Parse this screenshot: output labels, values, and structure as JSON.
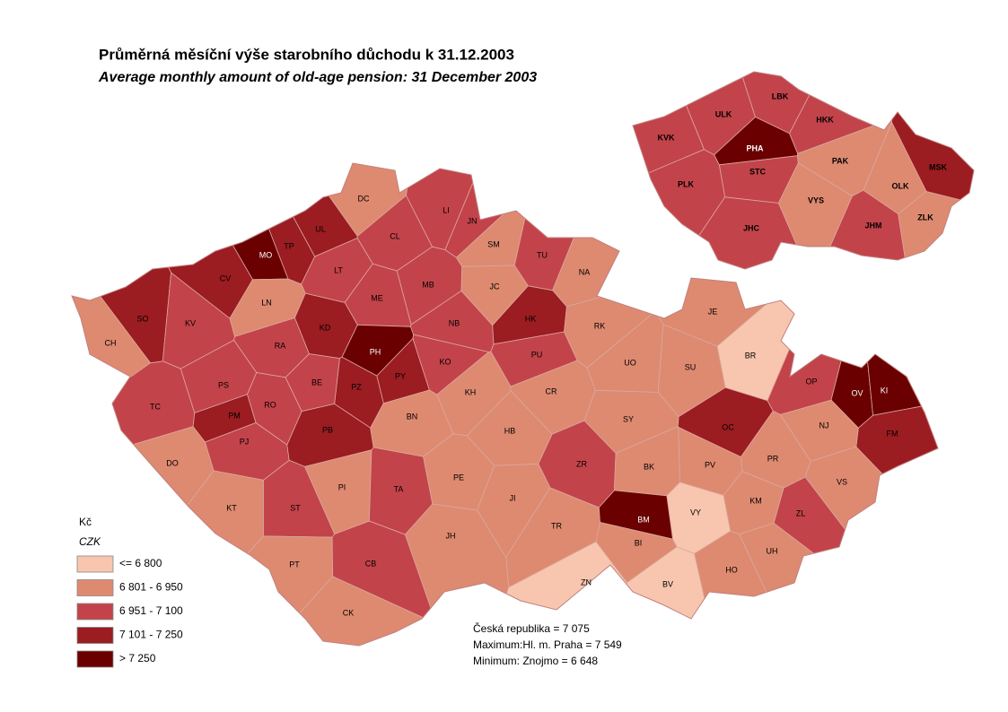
{
  "title": "Průměrná měsíční výše starobního důchodu k 31.12.2003",
  "subtitle": "Average monthly amount of old-age pension: 31 December 2003",
  "legend": {
    "title": "Kč",
    "subtitle": "CZK",
    "classes": [
      {
        "label": "<= 6 800",
        "color": "#f8c6ae"
      },
      {
        "label": "6 801 - 6 950",
        "color": "#de8a70"
      },
      {
        "label": "6 951 - 7 100",
        "color": "#c3434a"
      },
      {
        "label": "7 101 - 7 250",
        "color": "#9b1c21"
      },
      {
        "label": "> 7 250",
        "color": "#6a0000"
      }
    ]
  },
  "districts": [
    {
      "label": "DC",
      "class": 1
    },
    {
      "label": "TP",
      "class": 3
    },
    {
      "label": "UL",
      "class": 3
    },
    {
      "label": "MO",
      "class": 4
    },
    {
      "label": "CV",
      "class": 3
    },
    {
      "label": "LN",
      "class": 1
    },
    {
      "label": "CL",
      "class": 2
    },
    {
      "label": "LI",
      "class": 2
    },
    {
      "label": "JN",
      "class": 2
    },
    {
      "label": "SM",
      "class": 1
    },
    {
      "label": "TU",
      "class": 2
    },
    {
      "label": "NA",
      "class": 1
    },
    {
      "label": "JC",
      "class": 1
    },
    {
      "label": "LT",
      "class": 2
    },
    {
      "label": "ME",
      "class": 2
    },
    {
      "label": "MB",
      "class": 2
    },
    {
      "label": "SO",
      "class": 3
    },
    {
      "label": "KV",
      "class": 2
    },
    {
      "label": "CH",
      "class": 1
    },
    {
      "label": "KD",
      "class": 3
    },
    {
      "label": "RA",
      "class": 2
    },
    {
      "label": "NB",
      "class": 2
    },
    {
      "label": "HK",
      "class": 3
    },
    {
      "label": "RK",
      "class": 1
    },
    {
      "label": "JE",
      "class": 1
    },
    {
      "label": "PH",
      "class": 4
    },
    {
      "label": "PY",
      "class": 3
    },
    {
      "label": "PZ",
      "class": 3
    },
    {
      "label": "KO",
      "class": 2
    },
    {
      "label": "PU",
      "class": 2
    },
    {
      "label": "UO",
      "class": 1
    },
    {
      "label": "SU",
      "class": 1
    },
    {
      "label": "BR",
      "class": 0
    },
    {
      "label": "OP",
      "class": 2
    },
    {
      "label": "OV",
      "class": 4
    },
    {
      "label": "KI",
      "class": 4
    },
    {
      "label": "FM",
      "class": 3
    },
    {
      "label": "TC",
      "class": 2
    },
    {
      "label": "PS",
      "class": 2
    },
    {
      "label": "RO",
      "class": 2
    },
    {
      "label": "BE",
      "class": 2
    },
    {
      "label": "PM",
      "class": 3
    },
    {
      "label": "PJ",
      "class": 2
    },
    {
      "label": "PB",
      "class": 3
    },
    {
      "label": "BN",
      "class": 1
    },
    {
      "label": "KH",
      "class": 1
    },
    {
      "label": "CR",
      "class": 1
    },
    {
      "label": "HB",
      "class": 1
    },
    {
      "label": "SY",
      "class": 1
    },
    {
      "label": "OC",
      "class": 3
    },
    {
      "label": "NJ",
      "class": 1
    },
    {
      "label": "PR",
      "class": 1
    },
    {
      "label": "VS",
      "class": 1
    },
    {
      "label": "DO",
      "class": 1
    },
    {
      "label": "KT",
      "class": 1
    },
    {
      "label": "PI",
      "class": 1
    },
    {
      "label": "TA",
      "class": 2
    },
    {
      "label": "ST",
      "class": 2
    },
    {
      "label": "PE",
      "class": 1
    },
    {
      "label": "ZR",
      "class": 2
    },
    {
      "label": "BK",
      "class": 1
    },
    {
      "label": "PV",
      "class": 1
    },
    {
      "label": "KM",
      "class": 1
    },
    {
      "label": "ZL",
      "class": 2
    },
    {
      "label": "JI",
      "class": 1
    },
    {
      "label": "VY",
      "class": 0
    },
    {
      "label": "BM",
      "class": 4
    },
    {
      "label": "BI",
      "class": 1
    },
    {
      "label": "UH",
      "class": 1
    },
    {
      "label": "TR",
      "class": 1
    },
    {
      "label": "JH",
      "class": 1
    },
    {
      "label": "PT",
      "class": 1
    },
    {
      "label": "CB",
      "class": 2
    },
    {
      "label": "HO",
      "class": 1
    },
    {
      "label": "ZN",
      "class": 0
    },
    {
      "label": "BV",
      "class": 0
    },
    {
      "label": "CK",
      "class": 1
    }
  ],
  "regions": [
    {
      "label": "ULK",
      "class": 2
    },
    {
      "label": "LBK",
      "class": 2
    },
    {
      "label": "HKK",
      "class": 2
    },
    {
      "label": "KVK",
      "class": 2
    },
    {
      "label": "PHA",
      "class": 4
    },
    {
      "label": "STC",
      "class": 2
    },
    {
      "label": "PAK",
      "class": 1
    },
    {
      "label": "MSK",
      "class": 3
    },
    {
      "label": "PLK",
      "class": 2
    },
    {
      "label": "VYS",
      "class": 1
    },
    {
      "label": "OLK",
      "class": 1
    },
    {
      "label": "ZLK",
      "class": 1
    },
    {
      "label": "JHC",
      "class": 2
    },
    {
      "label": "JHM",
      "class": 2
    }
  ],
  "summary": [
    "Česká republika =  7 075",
    "Maximum:Hl. m. Praha =  7 549",
    "Minimum: Znojmo  =  6 648"
  ]
}
